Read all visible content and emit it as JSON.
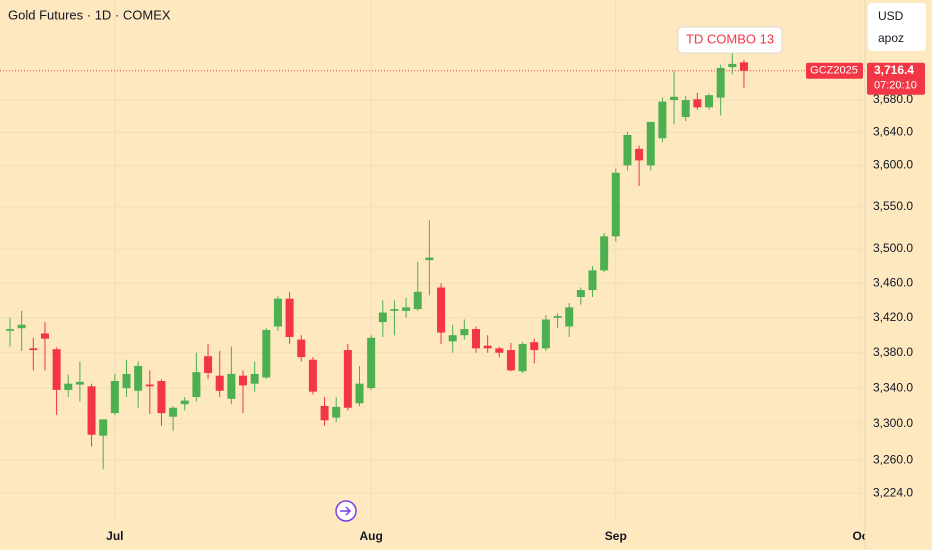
{
  "chart_data": {
    "type": "candlestick",
    "title": "Gold Futures · 1D · COMEX",
    "currency": "USD",
    "account": "apoz",
    "symbol": "GCZ2025",
    "countdown": "07:20:10",
    "annotation": "TD COMBO 13",
    "last_price": {
      "value": 3716.4,
      "label": "3,716.4"
    },
    "log_scale": true,
    "grid": true,
    "up_color": "#4caf50",
    "down_color": "#f23645",
    "categories": [
      null,
      null,
      null,
      null,
      null,
      null,
      null,
      null,
      null,
      "Jul",
      null,
      null,
      null,
      null,
      null,
      null,
      null,
      null,
      null,
      null,
      null,
      null,
      null,
      null,
      null,
      null,
      null,
      null,
      null,
      null,
      null,
      "Aug",
      null,
      null,
      null,
      null,
      null,
      null,
      null,
      null,
      null,
      null,
      null,
      null,
      null,
      null,
      null,
      null,
      null,
      null,
      null,
      null,
      "Sep",
      null,
      null,
      null,
      null,
      null,
      null,
      null,
      null,
      null,
      null,
      null,
      null,
      null,
      null,
      null,
      null,
      null,
      null,
      null,
      null,
      "Oc"
    ],
    "open": [
      3405,
      3408,
      3385,
      3402,
      3384,
      3338,
      3344,
      3342,
      3287,
      3312,
      3340,
      3337,
      3344,
      3348,
      3308,
      3322,
      3330,
      3376,
      3354,
      3328,
      3354,
      3345,
      3352,
      3410,
      3442,
      3395,
      3372,
      3320,
      3307,
      3383,
      3323,
      3340,
      3415,
      3428,
      3428,
      3430,
      3487,
      3455,
      3393,
      3400,
      3407,
      3388,
      3385,
      3383,
      3359,
      3392,
      3385,
      3420,
      3410,
      3444,
      3452,
      3475,
      3515,
      3600,
      3620,
      3600,
      3633,
      3680,
      3659,
      3681,
      3671,
      3683,
      3721,
      3727,
      null,
      null,
      null,
      null,
      null,
      null,
      null,
      null,
      null,
      null
    ],
    "close": [
      3407,
      3412,
      3383,
      3396,
      3338,
      3345,
      3347,
      3288,
      3305,
      3348,
      3356,
      3365,
      3342,
      3312,
      3318,
      3326,
      3358,
      3357,
      3337,
      3356,
      3343,
      3356,
      3406,
      3442,
      3398,
      3375,
      3336,
      3304,
      3319,
      3318,
      3345,
      3397,
      3426,
      3430,
      3432,
      3450,
      3490,
      3403,
      3400,
      3407,
      3385,
      3385,
      3380,
      3360,
      3390,
      3383,
      3418,
      3422,
      3432,
      3452,
      3475,
      3515,
      3591,
      3637,
      3606,
      3653,
      3678,
      3684,
      3680,
      3671,
      3686,
      3720,
      3725,
      3716.4,
      null,
      null,
      null,
      null,
      null,
      null,
      null,
      null,
      null,
      null
    ],
    "high": [
      3420,
      3428,
      3397,
      3415,
      3386,
      3355,
      3370,
      3345,
      3305,
      3356,
      3372,
      3370,
      3360,
      3350,
      3320,
      3330,
      3380,
      3390,
      3382,
      3387,
      3360,
      3370,
      3408,
      3445,
      3450,
      3400,
      3375,
      3330,
      3330,
      3390,
      3365,
      3400,
      3440,
      3440,
      3443,
      3485,
      3534,
      3460,
      3412,
      3418,
      3410,
      3400,
      3387,
      3391,
      3392,
      3396,
      3423,
      3425,
      3437,
      3455,
      3480,
      3519,
      3596,
      3641,
      3624,
      3653,
      3683,
      3716,
      3685,
      3689,
      3688,
      3724,
      3740,
      3730,
      null,
      null,
      null,
      null,
      null,
      null,
      null,
      null,
      null,
      null
    ],
    "low": [
      3387,
      3382,
      3360,
      3360,
      3310,
      3330,
      3325,
      3275,
      3250,
      3310,
      3330,
      3318,
      3311,
      3298,
      3292,
      3315,
      3325,
      3350,
      3330,
      3322,
      3312,
      3336,
      3350,
      3405,
      3390,
      3370,
      3333,
      3298,
      3302,
      3315,
      3320,
      3338,
      3398,
      3400,
      3420,
      3428,
      3446,
      3390,
      3380,
      3395,
      3380,
      3380,
      3375,
      3359,
      3357,
      3368,
      3382,
      3408,
      3398,
      3435,
      3444,
      3473,
      3509,
      3594,
      3575,
      3594,
      3628,
      3650,
      3654,
      3668,
      3668,
      3661,
      3712,
      3695,
      null,
      null,
      null,
      null,
      null,
      null,
      null,
      null,
      null,
      null
    ],
    "ylim": [
      3195,
      3806
    ],
    "yticks": [
      {
        "value": 3224,
        "label": "3,224.0"
      },
      {
        "value": 3260,
        "label": "3,260.0"
      },
      {
        "value": 3300,
        "label": "3,300.0"
      },
      {
        "value": 3340,
        "label": "3,340.0"
      },
      {
        "value": 3380,
        "label": "3,380.0"
      },
      {
        "value": 3420,
        "label": "3,420.0"
      },
      {
        "value": 3460,
        "label": "3,460.0"
      },
      {
        "value": 3500,
        "label": "3,500.0"
      },
      {
        "value": 3550,
        "label": "3,550.0"
      },
      {
        "value": 3600,
        "label": "3,600.0"
      },
      {
        "value": 3640,
        "label": "3,640.0"
      },
      {
        "value": 3680,
        "label": "3,680.0"
      }
    ]
  }
}
